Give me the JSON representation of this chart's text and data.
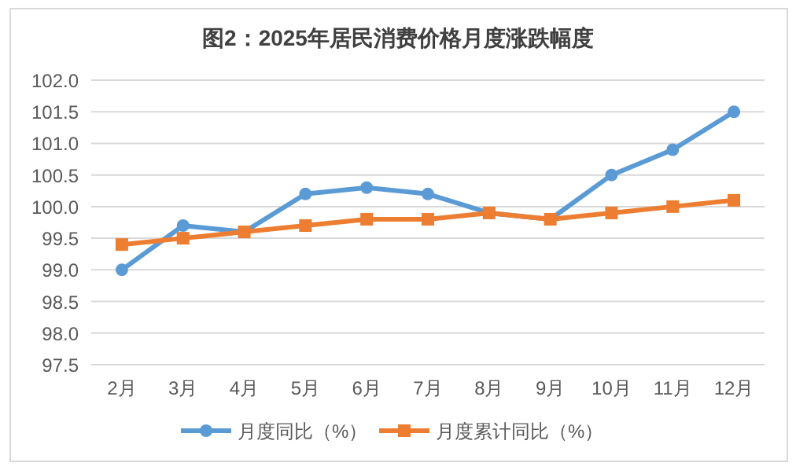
{
  "chart_data": {
    "type": "line",
    "title": "图2：2025年居民消费价格月度涨跌幅度",
    "categories": [
      "2月",
      "3月",
      "4月",
      "5月",
      "6月",
      "7月",
      "8月",
      "9月",
      "10月",
      "11月",
      "12月"
    ],
    "series": [
      {
        "name": "月度同比（%）",
        "color": "#5b9bd5",
        "marker": "circle",
        "values": [
          99.0,
          99.7,
          99.6,
          100.2,
          100.3,
          100.2,
          99.9,
          99.8,
          100.5,
          100.9,
          101.5
        ]
      },
      {
        "name": "月度累计同比（%）",
        "color": "#ed7d31",
        "marker": "square",
        "values": [
          99.4,
          99.5,
          99.6,
          99.7,
          99.8,
          99.8,
          99.9,
          99.8,
          99.9,
          100.0,
          100.1
        ]
      }
    ],
    "ylim": [
      97.5,
      102.0
    ],
    "yticks": [
      {
        "value": 97.5,
        "label": "97.5"
      },
      {
        "value": 98,
        "label": "98.0"
      },
      {
        "value": 98.5,
        "label": "98.5"
      },
      {
        "value": 99,
        "label": "99.0"
      },
      {
        "value": 99.5,
        "label": "99.5"
      },
      {
        "value": 100,
        "label": "100.0"
      },
      {
        "value": 100.5,
        "label": "100.5"
      },
      {
        "value": 101,
        "label": "101.0"
      },
      {
        "value": 101.5,
        "label": "101.5"
      },
      {
        "value": 102,
        "label": "102.0"
      }
    ],
    "grid": "y",
    "legend": "bottom",
    "line_style": "solid"
  }
}
